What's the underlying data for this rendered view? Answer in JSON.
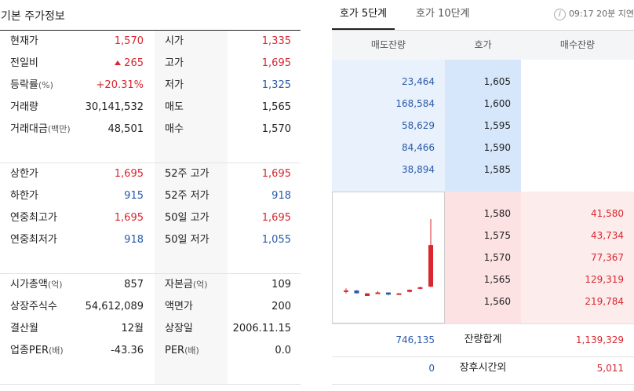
{
  "left": {
    "title": "기본 주가정보",
    "rows": [
      {
        "l1": "현재가",
        "l1s": "",
        "v1": "1,570",
        "c1": "red",
        "tri": false,
        "l2": "시가",
        "l2s": "",
        "v2": "1,335",
        "c2": "red"
      },
      {
        "l1": "전일비",
        "l1s": "",
        "v1": "265",
        "c1": "red",
        "tri": true,
        "l2": "고가",
        "l2s": "",
        "v2": "1,695",
        "c2": "red"
      },
      {
        "l1": "등락률",
        "l1s": "(%)",
        "v1": "+20.31%",
        "c1": "red",
        "tri": false,
        "l2": "저가",
        "l2s": "",
        "v2": "1,325",
        "c2": "blue"
      },
      {
        "l1": "거래량",
        "l1s": "",
        "v1": "30,141,532",
        "c1": "",
        "tri": false,
        "l2": "매도",
        "l2s": "",
        "v2": "1,565",
        "c2": ""
      },
      {
        "l1": "거래대금",
        "l1s": "(백만)",
        "v1": "48,501",
        "c1": "",
        "tri": false,
        "l2": "매수",
        "l2s": "",
        "v2": "1,570",
        "c2": ""
      },
      {
        "l1": "상한가",
        "l1s": "",
        "v1": "1,695",
        "c1": "red",
        "tri": false,
        "l2": "52주 고가",
        "l2s": "",
        "v2": "1,695",
        "c2": "red"
      },
      {
        "l1": "하한가",
        "l1s": "",
        "v1": "915",
        "c1": "blue",
        "tri": false,
        "l2": "52주 저가",
        "l2s": "",
        "v2": "918",
        "c2": "blue"
      },
      {
        "l1": "연중최고가",
        "l1s": "",
        "v1": "1,695",
        "c1": "red",
        "tri": false,
        "l2": "50일 고가",
        "l2s": "",
        "v2": "1,695",
        "c2": "red"
      },
      {
        "l1": "연중최저가",
        "l1s": "",
        "v1": "918",
        "c1": "blue",
        "tri": false,
        "l2": "50일 저가",
        "l2s": "",
        "v2": "1,055",
        "c2": "blue"
      },
      {
        "l1": "시가총액",
        "l1s": "(억)",
        "v1": "857",
        "c1": "",
        "tri": false,
        "l2": "자본금",
        "l2s": "(억)",
        "v2": "109",
        "c2": ""
      },
      {
        "l1": "상장주식수",
        "l1s": "",
        "v1": "54,612,089",
        "c1": "",
        "tri": false,
        "l2": "액면가",
        "l2s": "",
        "v2": "200",
        "c2": ""
      },
      {
        "l1": "결산월",
        "l1s": "",
        "v1": "12월",
        "c1": "",
        "tri": false,
        "l2": "상장일",
        "l2s": "",
        "v2": "2006.11.15",
        "c2": ""
      },
      {
        "l1": "업종PER",
        "l1s": "(배)",
        "v1": "-43.36",
        "c1": "",
        "tri": false,
        "l2": "PER",
        "l2s": "(배)",
        "v2": "0.0",
        "c2": ""
      }
    ]
  },
  "right": {
    "tab_active": "호가 5단계",
    "tab_inactive": "호가 10단계",
    "info_icon": "i",
    "time": "09:17 20분 지연",
    "headers": [
      "매도잔량",
      "호가",
      "매수잔량"
    ],
    "asks": [
      {
        "qty": "23,464",
        "price": "1,605"
      },
      {
        "qty": "168,584",
        "price": "1,600"
      },
      {
        "qty": "58,629",
        "price": "1,595"
      },
      {
        "qty": "84,466",
        "price": "1,590"
      },
      {
        "qty": "38,894",
        "price": "1,585"
      }
    ],
    "bids": [
      {
        "price": "1,580",
        "qty": "41,580"
      },
      {
        "price": "1,575",
        "qty": "43,734"
      },
      {
        "price": "1,570",
        "qty": "77,367"
      },
      {
        "price": "1,565",
        "qty": "129,319"
      },
      {
        "price": "1,560",
        "qty": "219,784"
      }
    ],
    "total": {
      "ask": "746,135",
      "label": "잔량합계",
      "bid": "1,139,329"
    },
    "after": {
      "ask": "0",
      "label": "장후시간외",
      "bid": "5,011"
    }
  },
  "colors": {
    "up": "#d9262f",
    "down": "#2a5ba8"
  },
  "mini_candles": [
    {
      "color": "red",
      "open": 1352,
      "high": 1362,
      "low": 1338,
      "close": 1350
    },
    {
      "color": "blue",
      "open": 1352,
      "high": 1352,
      "low": 1338,
      "close": 1338
    },
    {
      "color": "red",
      "open": 1338,
      "high": 1338,
      "low": 1325,
      "close": 1325
    },
    {
      "color": "red",
      "open": 1342,
      "high": 1348,
      "low": 1338,
      "close": 1340
    },
    {
      "color": "blue",
      "open": 1342,
      "high": 1342,
      "low": 1328,
      "close": 1332
    },
    {
      "color": "red",
      "open": 1338,
      "high": 1338,
      "low": 1334,
      "close": 1336
    },
    {
      "color": "red",
      "open": 1345,
      "high": 1356,
      "low": 1342,
      "close": 1355
    },
    {
      "color": "red",
      "open": 1360,
      "high": 1370,
      "low": 1358,
      "close": 1367
    },
    {
      "color": "red",
      "open": 1370,
      "high": 1695,
      "low": 1368,
      "close": 1570
    }
  ]
}
